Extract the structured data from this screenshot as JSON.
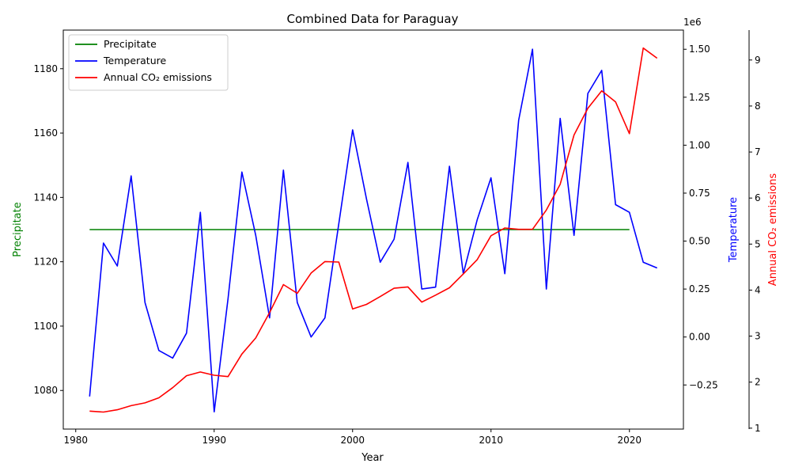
{
  "chart_data": {
    "type": "line",
    "title": "Combined Data for Paraguay",
    "xlabel": "Year",
    "x_ticks": [
      1980,
      1990,
      2000,
      2010,
      2020
    ],
    "xlim": [
      1979.1,
      2023.9
    ],
    "axes": {
      "left": {
        "label": "Precipitate",
        "color": "#008000",
        "ylim": [
          1068,
          1192
        ],
        "ticks": [
          1080,
          1100,
          1120,
          1140,
          1160,
          1180
        ]
      },
      "right1": {
        "label": "Temperature",
        "color": "#0000ff",
        "scale_note": "1e6",
        "ylim": [
          -0.48,
          1.6
        ],
        "ticks": [
          -0.25,
          0.0,
          0.25,
          0.5,
          0.75,
          1.0,
          1.25,
          1.5
        ],
        "tick_labels": [
          "−0.25",
          "0.00",
          "0.25",
          "0.50",
          "0.75",
          "1.00",
          "1.25",
          "1.50"
        ]
      },
      "right2": {
        "label": "Annual CO₂ emissions",
        "color": "#ff0000",
        "ylim": [
          0.98,
          9.65
        ],
        "ticks": [
          1,
          2,
          3,
          4,
          5,
          6,
          7,
          8,
          9
        ]
      }
    },
    "legend_position": "top-left",
    "series": [
      {
        "name": "Precipitate",
        "axis": "left",
        "color": "#008000",
        "x": [
          1981,
          1982,
          1983,
          1984,
          1985,
          1986,
          1987,
          1988,
          1989,
          1990,
          1991,
          1992,
          1993,
          1994,
          1995,
          1996,
          1997,
          1998,
          1999,
          2000,
          2001,
          2002,
          2003,
          2004,
          2005,
          2006,
          2007,
          2008,
          2009,
          2010,
          2011,
          2012,
          2013,
          2014,
          2015,
          2016,
          2017,
          2018,
          2019,
          2020
        ],
        "values": [
          1130,
          1130,
          1130,
          1130,
          1130,
          1130,
          1130,
          1130,
          1130,
          1130,
          1130,
          1130,
          1130,
          1130,
          1130,
          1130,
          1130,
          1130,
          1130,
          1130,
          1130,
          1130,
          1130,
          1130,
          1130,
          1130,
          1130,
          1130,
          1130,
          1130,
          1130,
          1130,
          1130,
          1130,
          1130,
          1130,
          1130,
          1130,
          1130,
          1130
        ]
      },
      {
        "name": "Temperature",
        "axis": "right1",
        "color": "#0000ff",
        "x": [
          1981,
          1982,
          1983,
          1984,
          1985,
          1986,
          1987,
          1988,
          1989,
          1990,
          1991,
          1992,
          1993,
          1994,
          1995,
          1996,
          1997,
          1998,
          1999,
          2000,
          2001,
          2002,
          2003,
          2004,
          2005,
          2006,
          2007,
          2008,
          2009,
          2010,
          2011,
          2012,
          2013,
          2014,
          2015,
          2016,
          2017,
          2018,
          2019,
          2020,
          2021,
          2022
        ],
        "values": [
          -0.31,
          0.49,
          0.37,
          0.84,
          0.18,
          -0.07,
          -0.11,
          0.02,
          0.65,
          -0.39,
          0.2,
          0.86,
          0.53,
          0.1,
          0.87,
          0.18,
          0.0,
          0.1,
          0.59,
          1.08,
          0.72,
          0.39,
          0.51,
          0.91,
          0.25,
          0.26,
          0.89,
          0.33,
          0.61,
          0.83,
          0.33,
          1.13,
          1.5,
          0.25,
          1.14,
          0.53,
          1.27,
          1.39,
          0.69,
          0.65,
          0.39,
          0.36
        ]
      },
      {
        "name": "Annual CO₂ emissions",
        "axis": "right2",
        "color": "#ff0000",
        "x": [
          1981,
          1982,
          1983,
          1984,
          1985,
          1986,
          1987,
          1988,
          1989,
          1990,
          1991,
          1992,
          1993,
          1994,
          1995,
          1996,
          1997,
          1998,
          1999,
          2000,
          2001,
          2002,
          2003,
          2004,
          2005,
          2006,
          2007,
          2008,
          2009,
          2010,
          2011,
          2012,
          2013,
          2014,
          2015,
          2016,
          2017,
          2018,
          2019,
          2020,
          2021,
          2022
        ],
        "values": [
          1.37,
          1.35,
          1.4,
          1.49,
          1.55,
          1.66,
          1.88,
          2.14,
          2.22,
          2.15,
          2.12,
          2.61,
          2.96,
          3.51,
          4.12,
          3.93,
          4.37,
          4.62,
          4.61,
          3.59,
          3.69,
          3.86,
          4.04,
          4.07,
          3.74,
          3.89,
          4.05,
          4.35,
          4.66,
          5.18,
          5.35,
          5.32,
          5.32,
          5.74,
          6.3,
          7.37,
          7.95,
          8.33,
          8.09,
          7.4,
          9.26,
          9.04
        ]
      }
    ]
  }
}
